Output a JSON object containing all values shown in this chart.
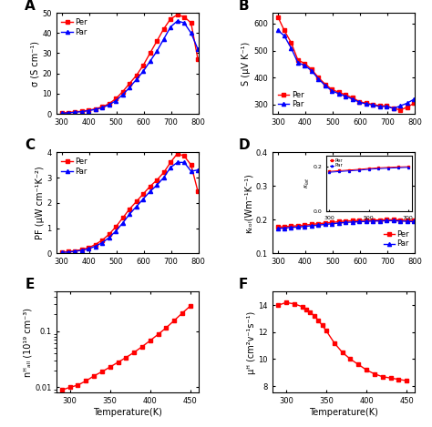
{
  "panel_A": {
    "label": "A",
    "ylabel": "σ (S cm⁻¹)",
    "xlim": [
      280,
      800
    ],
    "ylim": [
      0,
      50
    ],
    "yticks": [
      0,
      10,
      20,
      30,
      40,
      50
    ],
    "xticks": [
      300,
      400,
      500,
      600,
      700,
      800
    ],
    "per_x": [
      300,
      323,
      348,
      373,
      398,
      423,
      448,
      473,
      498,
      523,
      548,
      573,
      598,
      623,
      648,
      673,
      698,
      723,
      748,
      773,
      798
    ],
    "per_y": [
      0.5,
      0.7,
      1.0,
      1.3,
      1.8,
      2.5,
      3.5,
      5.0,
      7.5,
      11,
      15,
      19,
      24,
      30,
      36,
      42,
      47,
      49,
      48,
      45,
      27
    ],
    "par_x": [
      300,
      323,
      348,
      373,
      398,
      423,
      448,
      473,
      498,
      523,
      548,
      573,
      598,
      623,
      648,
      673,
      698,
      723,
      748,
      773,
      798
    ],
    "par_y": [
      0.3,
      0.5,
      0.8,
      1.1,
      1.6,
      2.2,
      3.0,
      4.5,
      6.5,
      9.5,
      13,
      17,
      21,
      26,
      31,
      37,
      43,
      46,
      45,
      40,
      32
    ]
  },
  "panel_B": {
    "label": "B",
    "ylabel": "S (μV K⁻¹)",
    "xlim": [
      280,
      800
    ],
    "ylim": [
      265,
      640
    ],
    "yticks": [
      300,
      400,
      500,
      600
    ],
    "xticks": [
      300,
      400,
      500,
      600,
      700,
      800
    ],
    "per_x": [
      300,
      323,
      348,
      373,
      398,
      423,
      448,
      473,
      498,
      523,
      548,
      573,
      598,
      623,
      648,
      673,
      698,
      723,
      748,
      773,
      798
    ],
    "per_y": [
      625,
      575,
      530,
      465,
      452,
      430,
      400,
      375,
      355,
      345,
      335,
      325,
      310,
      305,
      300,
      295,
      295,
      285,
      280,
      290,
      305
    ],
    "par_x": [
      300,
      323,
      348,
      373,
      398,
      423,
      448,
      473,
      498,
      523,
      548,
      573,
      598,
      623,
      648,
      673,
      698,
      723,
      748,
      773,
      798
    ],
    "par_y": [
      575,
      555,
      510,
      455,
      445,
      425,
      395,
      370,
      350,
      340,
      330,
      320,
      308,
      302,
      298,
      292,
      293,
      285,
      295,
      305,
      320
    ]
  },
  "panel_C": {
    "label": "C",
    "ylabel": "PF (μW cm⁻¹K⁻²)",
    "xlim": [
      280,
      800
    ],
    "ylim": [
      0,
      4
    ],
    "yticks": [
      0,
      1,
      2,
      3,
      4
    ],
    "xticks": [
      300,
      400,
      500,
      600,
      700,
      800
    ],
    "per_x": [
      300,
      323,
      348,
      373,
      398,
      423,
      448,
      473,
      498,
      523,
      548,
      573,
      598,
      623,
      648,
      673,
      698,
      723,
      748,
      773,
      798
    ],
    "per_y": [
      0.05,
      0.07,
      0.1,
      0.15,
      0.22,
      0.35,
      0.52,
      0.75,
      1.05,
      1.4,
      1.75,
      2.05,
      2.35,
      2.65,
      2.9,
      3.2,
      3.6,
      3.95,
      3.85,
      3.5,
      2.45
    ],
    "par_x": [
      300,
      323,
      348,
      373,
      398,
      423,
      448,
      473,
      498,
      523,
      548,
      573,
      598,
      623,
      648,
      673,
      698,
      723,
      748,
      773,
      798
    ],
    "par_y": [
      0.04,
      0.05,
      0.08,
      0.12,
      0.18,
      0.28,
      0.42,
      0.62,
      0.88,
      1.2,
      1.55,
      1.85,
      2.15,
      2.45,
      2.7,
      3.0,
      3.4,
      3.6,
      3.6,
      3.25,
      3.3
    ]
  },
  "panel_D": {
    "label": "D",
    "ylabel": "κₜₒₗ(Wm⁻¹K⁻¹)",
    "xlim": [
      280,
      800
    ],
    "ylim": [
      0.1,
      0.4
    ],
    "yticks": [
      0.1,
      0.2,
      0.3,
      0.4
    ],
    "xticks": [
      300,
      400,
      500,
      600,
      700,
      800
    ],
    "per_x": [
      300,
      323,
      348,
      373,
      398,
      423,
      448,
      473,
      498,
      523,
      548,
      573,
      598,
      623,
      648,
      673,
      698,
      723,
      748,
      773,
      798
    ],
    "per_y": [
      0.178,
      0.179,
      0.181,
      0.182,
      0.184,
      0.186,
      0.188,
      0.19,
      0.192,
      0.194,
      0.196,
      0.197,
      0.198,
      0.198,
      0.199,
      0.199,
      0.2,
      0.2,
      0.199,
      0.198,
      0.197
    ],
    "par_x": [
      300,
      323,
      348,
      373,
      398,
      423,
      448,
      473,
      498,
      523,
      548,
      573,
      598,
      623,
      648,
      673,
      698,
      723,
      748,
      773,
      798
    ],
    "par_y": [
      0.174,
      0.175,
      0.177,
      0.178,
      0.18,
      0.182,
      0.184,
      0.186,
      0.188,
      0.19,
      0.192,
      0.193,
      0.194,
      0.195,
      0.196,
      0.196,
      0.197,
      0.197,
      0.196,
      0.195,
      0.194
    ],
    "inset_per_x": [
      300,
      350,
      400,
      450,
      500,
      550,
      600,
      650,
      700
    ],
    "inset_per_y": [
      0.178,
      0.181,
      0.184,
      0.187,
      0.191,
      0.194,
      0.196,
      0.198,
      0.199
    ],
    "inset_par_x": [
      300,
      350,
      400,
      450,
      500,
      550,
      600,
      650,
      700
    ],
    "inset_par_y": [
      0.174,
      0.177,
      0.18,
      0.183,
      0.187,
      0.19,
      0.192,
      0.194,
      0.196
    ]
  },
  "panel_E": {
    "label": "E",
    "xlabel": "Temperature(K)",
    "ylabel": "nᴴₐₗₗ (10¹⁹ cm⁻³)",
    "xlim": [
      283,
      460
    ],
    "ylim_log": [
      0.008,
      0.5
    ],
    "xticks": [
      300,
      350,
      400,
      450
    ],
    "per_x": [
      290,
      300,
      310,
      320,
      330,
      340,
      350,
      360,
      370,
      380,
      390,
      400,
      410,
      420,
      430,
      440,
      450
    ],
    "per_y": [
      0.009,
      0.01,
      0.011,
      0.013,
      0.016,
      0.019,
      0.023,
      0.028,
      0.034,
      0.042,
      0.053,
      0.068,
      0.088,
      0.115,
      0.155,
      0.21,
      0.28
    ]
  },
  "panel_F": {
    "label": "F",
    "xlabel": "Temperature(K)",
    "ylabel": "μᴴ (cm²v⁻¹s⁻¹)",
    "xlim": [
      283,
      460
    ],
    "ylim": [
      7.5,
      15
    ],
    "yticks": [
      8,
      10,
      12,
      14
    ],
    "xticks": [
      300,
      350,
      400,
      450
    ],
    "per_x": [
      290,
      300,
      310,
      320,
      325,
      330,
      335,
      340,
      345,
      350,
      360,
      370,
      380,
      390,
      400,
      410,
      420,
      430,
      440,
      450
    ],
    "per_y": [
      14.0,
      14.2,
      14.1,
      13.9,
      13.7,
      13.5,
      13.2,
      12.9,
      12.5,
      12.1,
      11.2,
      10.5,
      10.0,
      9.6,
      9.2,
      8.9,
      8.7,
      8.6,
      8.5,
      8.4
    ]
  },
  "red_color": "#ff0000",
  "blue_color": "#0000ff",
  "markersize": 3,
  "linewidth": 1.0,
  "fontsize_label": 7,
  "fontsize_tick": 6,
  "fontsize_legend": 6,
  "fontsize_panel_label": 11
}
